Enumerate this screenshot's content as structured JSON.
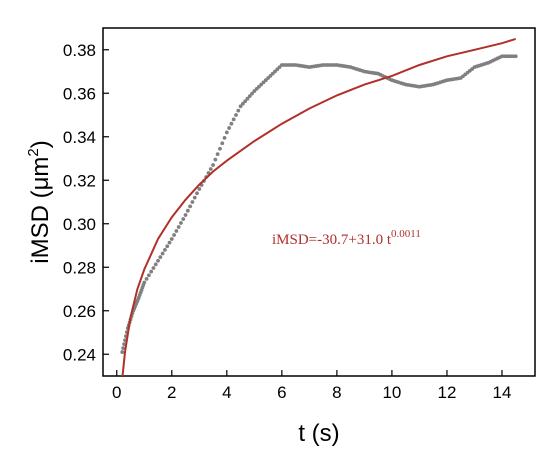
{
  "chart_data": {
    "type": "scatter",
    "xlabel": "t (s)",
    "ylabel": {
      "main": "iMSD (",
      "unit": "μm",
      "exponent": "2",
      "close": ")"
    },
    "xlim": [
      -0.5,
      15.2
    ],
    "ylim": [
      0.23,
      0.39
    ],
    "x_ticks": [
      0,
      2,
      4,
      6,
      8,
      10,
      12,
      14
    ],
    "y_ticks": [
      0.24,
      0.26,
      0.28,
      0.3,
      0.32,
      0.34,
      0.36,
      0.38
    ],
    "grid": false,
    "annotation": {
      "text": "iMSD=-30.7+31.0 t",
      "exponent": "0.0011",
      "color": "#b0302a"
    },
    "series": [
      {
        "kind": "data",
        "marker": "dot",
        "color": "#808080",
        "x": [
          0.2,
          0.4,
          0.6,
          0.8,
          1.0,
          1.5,
          2.0,
          2.5,
          3.0,
          3.5,
          4.0,
          4.5,
          5.0,
          5.5,
          6.0,
          6.5,
          7.0,
          7.5,
          8.0,
          8.5,
          9.0,
          9.5,
          10.0,
          10.5,
          11.0,
          11.5,
          12.0,
          12.5,
          13.0,
          13.5,
          14.0,
          14.5
        ],
        "y": [
          0.241,
          0.252,
          0.26,
          0.266,
          0.273,
          0.283,
          0.293,
          0.304,
          0.316,
          0.327,
          0.342,
          0.354,
          0.361,
          0.367,
          0.373,
          0.373,
          0.372,
          0.373,
          0.373,
          0.372,
          0.37,
          0.369,
          0.366,
          0.364,
          0.363,
          0.364,
          0.366,
          0.367,
          0.372,
          0.374,
          0.377,
          0.377
        ]
      },
      {
        "kind": "fit",
        "color": "#b0302a",
        "x": [
          0.2,
          0.3,
          0.5,
          0.75,
          1.0,
          1.5,
          2.0,
          2.5,
          3.0,
          3.5,
          4.0,
          5.0,
          6.0,
          7.0,
          8.0,
          9.0,
          10.0,
          11.0,
          12.0,
          13.0,
          14.0,
          14.5
        ],
        "y": [
          0.229,
          0.241,
          0.257,
          0.27,
          0.279,
          0.293,
          0.303,
          0.311,
          0.318,
          0.324,
          0.329,
          0.338,
          0.346,
          0.353,
          0.359,
          0.364,
          0.368,
          0.373,
          0.377,
          0.38,
          0.383,
          0.385
        ]
      }
    ]
  }
}
